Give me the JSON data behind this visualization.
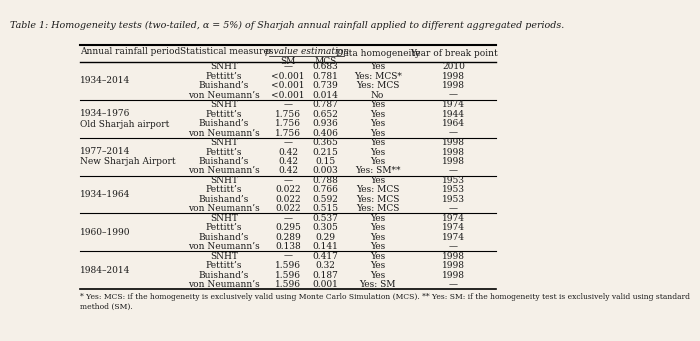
{
  "title": "Table 1: Homogeneity tests (two-tailed, α = 5%) of Sharjah annual rainfall applied to different aggregated periods.",
  "headers": [
    "Annual rainfall period",
    "Statistical measures",
    "SM",
    "MCS",
    "Data homogeneity",
    "Year of break point"
  ],
  "p_value_header": "p value estimation",
  "footnote": "* Yes: MCS: if the homogeneity is exclusively valid using Monte Carlo Simulation (MCS). ** Yes: SM: if the homogeneity test is exclusively valid using standard\nmethod (SM).",
  "rows": [
    [
      "1934–2014",
      "SNHT",
      "—",
      "0.683",
      "Yes",
      "2010"
    ],
    [
      "",
      "Pettitt’s",
      "<0.001",
      "0.781",
      "Yes: MCS*",
      "1998"
    ],
    [
      "",
      "Buishand’s",
      "<0.001",
      "0.739",
      "Yes: MCS",
      "1998"
    ],
    [
      "",
      "von Neumann’s",
      "<0.001",
      "0.014",
      "No",
      "—"
    ],
    [
      "1934–1976\nOld Sharjah airport",
      "SNHT",
      "—",
      "0.787",
      "Yes",
      "1974"
    ],
    [
      "",
      "Pettitt’s",
      "1.756",
      "0.652",
      "Yes",
      "1944"
    ],
    [
      "",
      "Buishand’s",
      "1.756",
      "0.936",
      "Yes",
      "1964"
    ],
    [
      "",
      "von Neumann’s",
      "1.756",
      "0.406",
      "Yes",
      "—"
    ],
    [
      "1977–2014\nNew Sharjah Airport",
      "SNHT",
      "—",
      "0.365",
      "Yes",
      "1998"
    ],
    [
      "",
      "Pettitt’s",
      "0.42",
      "0.215",
      "Yes",
      "1998"
    ],
    [
      "",
      "Buishand’s",
      "0.42",
      "0.15",
      "Yes",
      "1998"
    ],
    [
      "",
      "von Neumann’s",
      "0.42",
      "0.003",
      "Yes: SM**",
      "—"
    ],
    [
      "1934–1964",
      "SNHT",
      "—",
      "0.788",
      "Yes",
      "1953"
    ],
    [
      "",
      "Pettitt’s",
      "0.022",
      "0.766",
      "Yes: MCS",
      "1953"
    ],
    [
      "",
      "Buishand’s",
      "0.022",
      "0.592",
      "Yes: MCS",
      "1953"
    ],
    [
      "",
      "von Neumann’s",
      "0.022",
      "0.515",
      "Yes: MCS",
      "—"
    ],
    [
      "1960–1990",
      "SNHT",
      "—",
      "0.537",
      "Yes",
      "1974"
    ],
    [
      "",
      "Pettitt’s",
      "0.295",
      "0.305",
      "Yes",
      "1974"
    ],
    [
      "",
      "Buishand’s",
      "0.289",
      "0.29",
      "Yes",
      "1974"
    ],
    [
      "",
      "von Neumann’s",
      "0.138",
      "0.141",
      "Yes",
      "—"
    ],
    [
      "1984–2014",
      "SNHT",
      "—",
      "0.417",
      "Yes",
      "1998"
    ],
    [
      "",
      "Pettitt’s",
      "1.596",
      "0.32",
      "Yes",
      "1998"
    ],
    [
      "",
      "Buishand’s",
      "1.596",
      "0.187",
      "Yes",
      "1998"
    ],
    [
      "",
      "von Neumann’s",
      "1.596",
      "0.001",
      "Yes: SM",
      "—"
    ]
  ],
  "group_separators": [
    3,
    7,
    11,
    15,
    19
  ],
  "background_color": "#f5f0e8",
  "text_color": "#1a1a1a",
  "font_size": 6.5,
  "title_font_size": 6.8,
  "footnote_font_size": 5.5
}
